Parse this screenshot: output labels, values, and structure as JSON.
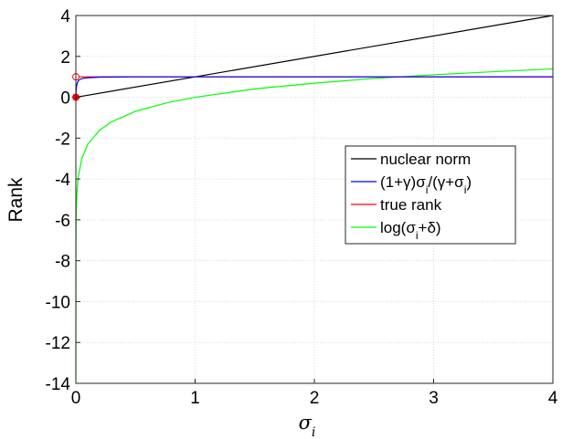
{
  "chart_data": {
    "type": "line",
    "xlabel": "σ_i",
    "ylabel": "Rank",
    "xlim": [
      0,
      4
    ],
    "ylim": [
      -14,
      4
    ],
    "xticks": [
      0,
      1,
      2,
      3,
      4
    ],
    "yticks": [
      -14,
      -12,
      -10,
      -8,
      -6,
      -4,
      -2,
      0,
      2,
      4
    ],
    "grid": true,
    "legend_position": "right-middle",
    "series": [
      {
        "name": "nuclear norm",
        "color": "#000000",
        "x": [
          0,
          4
        ],
        "y": [
          0,
          4
        ]
      },
      {
        "name": "(1+γ)σ_i/(γ+σ_i)",
        "color": "#0000ff",
        "x": [
          0,
          0.002,
          0.005,
          0.01,
          0.02,
          0.03,
          0.05,
          0.08,
          0.1,
          0.2,
          0.5,
          1,
          2,
          3,
          4
        ],
        "y": [
          0,
          0.286,
          0.502,
          0.667,
          0.801,
          0.858,
          0.91,
          0.943,
          0.953,
          0.985,
          0.998,
          1.0,
          1.0,
          1.0,
          1.0
        ]
      },
      {
        "name": "true rank",
        "color": "#ff0000",
        "x": [
          0,
          4
        ],
        "y": [
          1,
          1
        ]
      },
      {
        "name": "log(σ_i+δ)",
        "color": "#00ff00",
        "x": [
          0,
          0.001,
          0.002,
          0.005,
          0.01,
          0.02,
          0.05,
          0.1,
          0.2,
          0.3,
          0.5,
          0.75,
          1,
          1.5,
          2,
          2.5,
          3,
          3.5,
          4
        ],
        "y": [
          -13.8,
          -6.91,
          -6.21,
          -5.3,
          -4.61,
          -3.91,
          -3.0,
          -2.3,
          -1.61,
          -1.2,
          -0.69,
          -0.29,
          0.0,
          0.41,
          0.69,
          0.92,
          1.1,
          1.25,
          1.39
        ]
      }
    ],
    "markers": [
      {
        "x": 0,
        "y": 1,
        "style": "open-circle",
        "color": "#ff0000"
      },
      {
        "x": 0,
        "y": 0,
        "style": "filled-circle",
        "color": "#ff0000"
      }
    ]
  }
}
